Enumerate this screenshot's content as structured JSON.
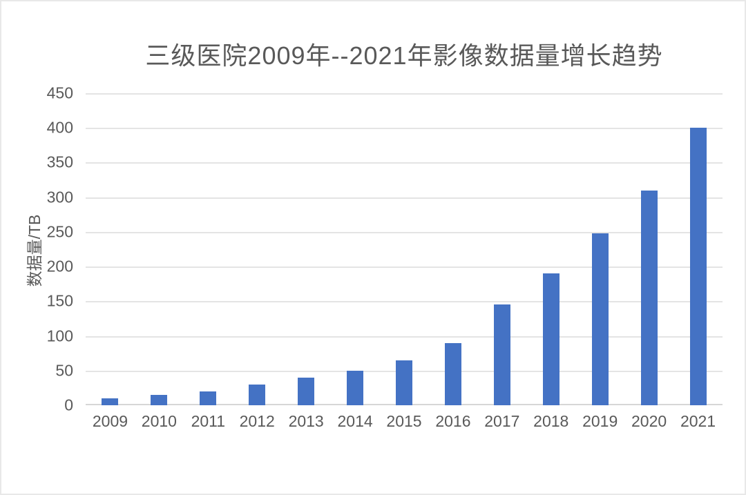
{
  "chart_data": {
    "type": "bar",
    "title": "三级医院2009年--2021年影像数据量增长趋势",
    "categories": [
      "2009",
      "2010",
      "2011",
      "2012",
      "2013",
      "2014",
      "2015",
      "2016",
      "2017",
      "2018",
      "2019",
      "2020",
      "2021"
    ],
    "values": [
      10,
      15,
      20,
      30,
      40,
      50,
      65,
      90,
      145,
      190,
      248,
      310,
      400
    ],
    "xlabel": "",
    "ylabel": "数据量/TB",
    "ylim": [
      0,
      450
    ],
    "y_ticks": [
      0,
      50,
      100,
      150,
      200,
      250,
      300,
      350,
      400,
      450
    ],
    "grid": true,
    "legend": false,
    "bar_color": "#4472c4",
    "text_color": "#595959",
    "gridline_color": "#e4e4e4",
    "axis_line_color": "#d6d6d6",
    "background_color": "#ffffff"
  }
}
